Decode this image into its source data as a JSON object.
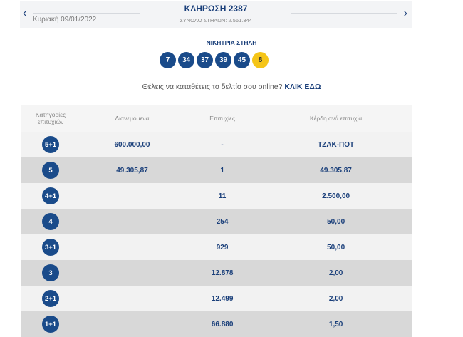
{
  "header": {
    "title": "ΚΛΗΡΩΣΗ 2387",
    "date": "Κυριακή 09/01/2022",
    "total_columns": "ΣΥΝΟΛΟ ΣΤΗΛΩΝ: 2.561.344",
    "prev_icon": "chevron-left",
    "next_icon": "chevron-right"
  },
  "winning": {
    "label": "ΝΙΚΗΤΡΙΑ ΣΤΗΛΗ",
    "numbers": [
      "7",
      "34",
      "37",
      "39",
      "45"
    ],
    "joker": "8"
  },
  "promo": {
    "text": "Θέλεις να καταθέτεις το δελτίο σου online? ",
    "link": "ΚΛΙΚ ΕΔΩ"
  },
  "table": {
    "headers": [
      "Κατηγορίες επιτυχιών",
      "Διανεμόμενα",
      "Επιτυχίες",
      "Κέρδη ανά επιτυχία"
    ],
    "rows": [
      [
        "5+1",
        "600.000,00",
        "-",
        "ΤΖΑΚ-ΠΟΤ"
      ],
      [
        "5",
        "49.305,87",
        "1",
        "49.305,87"
      ],
      [
        "4+1",
        "",
        "11",
        "2.500,00"
      ],
      [
        "4",
        "",
        "254",
        "50,00"
      ],
      [
        "3+1",
        "",
        "929",
        "50,00"
      ],
      [
        "3",
        "",
        "12.878",
        "2,00"
      ],
      [
        "2+1",
        "",
        "12.499",
        "2,00"
      ],
      [
        "1+1",
        "",
        "66.880",
        "1,50"
      ]
    ]
  }
}
